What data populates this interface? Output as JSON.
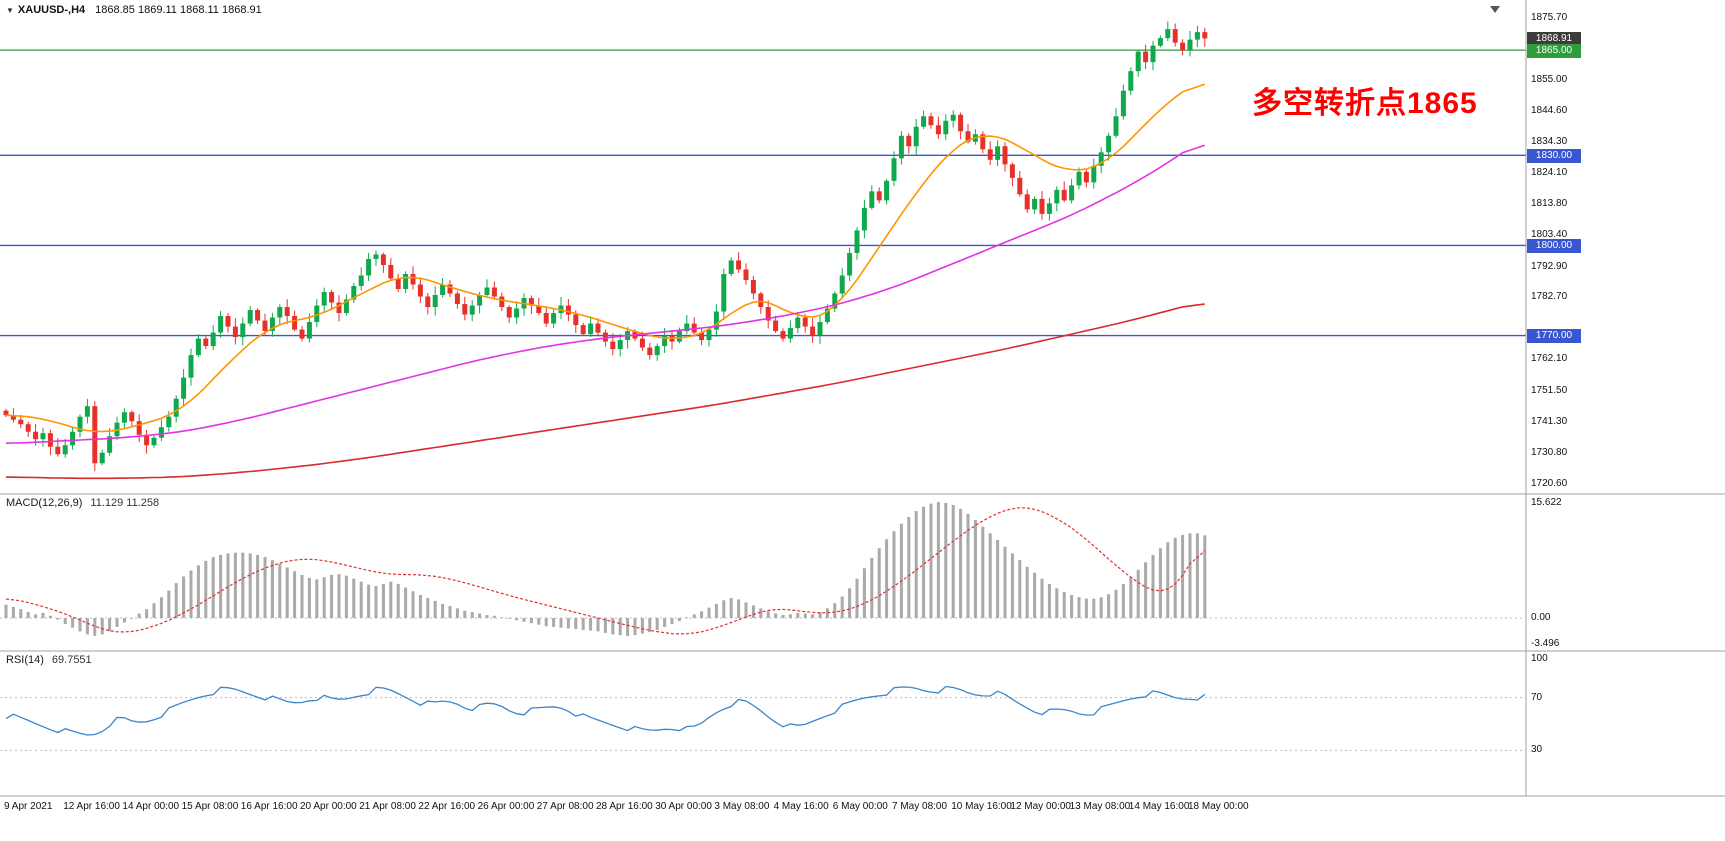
{
  "window": {
    "title_symbol": "XAUUSD-,H4",
    "title_ohlc": "1868.85 1869.11 1868.11 1868.91"
  },
  "annotation": {
    "text": "多空转折点1865",
    "color": "#ff0000"
  },
  "colors": {
    "bull": "#0fa84d",
    "bear": "#e8302a",
    "ma_fast": "#ff9500",
    "ma_mid": "#e334e3",
    "ma_slow": "#d92b2b",
    "hline_green": "#2d9e3a",
    "hline_blue": "#3a55d0",
    "macd_hist": "#a9a9a9",
    "macd_signal": "#e03131",
    "rsi_line": "#3d85c8",
    "price_badge": "#3c3c3c",
    "separator": "#a0a0a0",
    "dotted_level": "#b9b9c9"
  },
  "price_axis": {
    "ticks": [
      1875.7,
      1855.0,
      1844.6,
      1834.3,
      1824.1,
      1813.8,
      1803.4,
      1792.9,
      1782.7,
      1762.1,
      1751.5,
      1741.3,
      1730.8,
      1720.6
    ],
    "badges": [
      {
        "label": "1868.91",
        "price": 1868.91,
        "type": "last"
      },
      {
        "label": "1865.00",
        "price": 1865.0,
        "type": "green-line"
      },
      {
        "label": "1830.00",
        "price": 1830.0,
        "type": "blue-line"
      },
      {
        "label": "1800.00",
        "price": 1800.0,
        "type": "blue-line"
      },
      {
        "label": "1770.00",
        "price": 1770.0,
        "type": "blue-line"
      }
    ]
  },
  "time_axis": {
    "labels": [
      "9 Apr 2021",
      "12 Apr 16:00",
      "14 Apr 00:00",
      "15 Apr 08:00",
      "16 Apr 16:00",
      "20 Apr 00:00",
      "21 Apr 08:00",
      "22 Apr 16:00",
      "26 Apr 00:00",
      "27 Apr 08:00",
      "28 Apr 16:00",
      "30 Apr 00:00",
      "3 May 08:00",
      "4 May 16:00",
      "6 May 00:00",
      "7 May 08:00",
      "10 May 16:00",
      "12 May 00:00",
      "13 May 08:00",
      "14 May 16:00",
      "18 May 00:00"
    ]
  },
  "indicators": {
    "macd": {
      "label": "MACD(12,26,9)",
      "values": "11.129 11.258",
      "axis": [
        "15.622",
        "0.00",
        "-3.496"
      ]
    },
    "rsi": {
      "label": "RSI(14)",
      "value": "69.7551",
      "axis": [
        "100",
        "70",
        "30"
      ]
    }
  },
  "chart_data": [
    {
      "type": "candlestick",
      "title": "XAUUSD- H4",
      "ylim": [
        1720.6,
        1875.7
      ],
      "last_price": 1868.91,
      "first_open": 1745.0,
      "closes": [
        1743.5,
        1742,
        1740.5,
        1738,
        1735.5,
        1737.5,
        1733,
        1730.5,
        1733.5,
        1738,
        1743,
        1746.5,
        1727.5,
        1731,
        1736.5,
        1741,
        1744.5,
        1741.5,
        1737,
        1733.5,
        1736,
        1739.5,
        1743,
        1749,
        1756,
        1763.5,
        1769,
        1766.5,
        1771,
        1776.5,
        1773,
        1769.5,
        1774,
        1778.5,
        1775,
        1771.5,
        1776,
        1779.5,
        1776.5,
        1772,
        1769,
        1774.5,
        1780,
        1784.5,
        1781,
        1777.5,
        1782,
        1786.5,
        1790,
        1795.5,
        1797,
        1793.5,
        1789,
        1785.5,
        1790.5,
        1787,
        1783,
        1779.5,
        1783.5,
        1787,
        1784,
        1780.5,
        1777,
        1780,
        1783.5,
        1786,
        1783,
        1779.5,
        1776,
        1779,
        1782.5,
        1780,
        1777.5,
        1774,
        1777.5,
        1780,
        1777,
        1773.5,
        1770.5,
        1774,
        1771,
        1768,
        1765.5,
        1768.5,
        1771.5,
        1769,
        1766,
        1763.5,
        1766.5,
        1770,
        1768,
        1771.5,
        1774,
        1771,
        1768.5,
        1772,
        1778,
        1790.5,
        1795,
        1792,
        1788.5,
        1784,
        1779.5,
        1775,
        1771.5,
        1769,
        1772.5,
        1776,
        1773,
        1770,
        1774.5,
        1779,
        1784,
        1790,
        1797.5,
        1805,
        1812.5,
        1818,
        1815,
        1821.5,
        1829,
        1836.5,
        1833,
        1839.5,
        1843,
        1840,
        1837,
        1841.5,
        1843.5,
        1838,
        1834.5,
        1837,
        1832,
        1828.5,
        1833,
        1827,
        1822.5,
        1817,
        1812,
        1815.5,
        1810.5,
        1814,
        1818.5,
        1815,
        1820,
        1824.5,
        1821,
        1826.5,
        1831,
        1836.5,
        1843,
        1851.5,
        1858,
        1864.5,
        1861,
        1866.5,
        1869,
        1872,
        1867.5,
        1865,
        1868.5,
        1871,
        1868.91
      ],
      "hlines": [
        {
          "price": 1865.0,
          "color_key": "hline_green"
        },
        {
          "price": 1830.0,
          "color_key": "hline_blue"
        },
        {
          "price": 1800.0,
          "color_key": "hline_blue"
        },
        {
          "price": 1770.0,
          "color_key": "hline_blue"
        }
      ],
      "moving_averages": [
        {
          "name": "ma-fast",
          "color_key": "ma_fast",
          "points": [
            [
              0,
              1744
            ],
            [
              6,
              1742
            ],
            [
              12,
              1737
            ],
            [
              18,
              1740
            ],
            [
              24,
              1745
            ],
            [
              30,
              1761
            ],
            [
              36,
              1774
            ],
            [
              42,
              1776
            ],
            [
              48,
              1784
            ],
            [
              54,
              1791
            ],
            [
              60,
              1786
            ],
            [
              66,
              1782
            ],
            [
              72,
              1780
            ],
            [
              78,
              1777
            ],
            [
              84,
              1772
            ],
            [
              90,
              1768
            ],
            [
              96,
              1772
            ],
            [
              100,
              1783
            ],
            [
              104,
              1781
            ],
            [
              108,
              1774
            ],
            [
              112,
              1778
            ],
            [
              116,
              1792
            ],
            [
              120,
              1807
            ],
            [
              124,
              1821
            ],
            [
              128,
              1833
            ],
            [
              132,
              1838
            ],
            [
              136,
              1835
            ],
            [
              140,
              1828
            ],
            [
              144,
              1824
            ],
            [
              148,
              1826
            ],
            [
              152,
              1835
            ],
            [
              156,
              1846
            ],
            [
              160,
              1853
            ],
            [
              162,
              1856
            ]
          ]
        },
        {
          "name": "ma-mid",
          "color_key": "ma_mid",
          "points": [
            [
              0,
              1734
            ],
            [
              8,
              1735
            ],
            [
              16,
              1736
            ],
            [
              24,
              1738
            ],
            [
              32,
              1742
            ],
            [
              40,
              1747
            ],
            [
              48,
              1752
            ],
            [
              56,
              1757
            ],
            [
              64,
              1762
            ],
            [
              72,
              1766
            ],
            [
              80,
              1769
            ],
            [
              88,
              1771
            ],
            [
              96,
              1773
            ],
            [
              104,
              1776
            ],
            [
              112,
              1780
            ],
            [
              120,
              1786
            ],
            [
              128,
              1794
            ],
            [
              136,
              1802
            ],
            [
              144,
              1810
            ],
            [
              152,
              1820
            ],
            [
              158,
              1829
            ],
            [
              162,
              1836
            ]
          ]
        },
        {
          "name": "ma-slow",
          "color_key": "ma_slow",
          "points": [
            [
              0,
              1723
            ],
            [
              8,
              1722.5
            ],
            [
              16,
              1722.5
            ],
            [
              24,
              1723
            ],
            [
              32,
              1724.5
            ],
            [
              40,
              1726.5
            ],
            [
              48,
              1729
            ],
            [
              56,
              1732
            ],
            [
              64,
              1735
            ],
            [
              72,
              1738
            ],
            [
              80,
              1741
            ],
            [
              88,
              1744
            ],
            [
              96,
              1747
            ],
            [
              104,
              1750.5
            ],
            [
              112,
              1754
            ],
            [
              120,
              1758
            ],
            [
              128,
              1762
            ],
            [
              136,
              1766
            ],
            [
              144,
              1770.5
            ],
            [
              152,
              1775
            ],
            [
              162,
              1781.5
            ]
          ]
        }
      ]
    },
    {
      "type": "bar",
      "name": "MACD(12,26,9)",
      "ylim": [
        -3.496,
        15.622
      ],
      "current_values": [
        11.129,
        11.258
      ],
      "histogram": [
        1.8,
        1.5,
        1.2,
        0.8,
        0.5,
        0.7,
        0.3,
        -0.2,
        -0.8,
        -1.3,
        -1.8,
        -2.2,
        -2.4,
        -2.2,
        -1.8,
        -1.2,
        -0.6,
        0,
        0.6,
        1.2,
        2,
        2.8,
        3.7,
        4.7,
        5.6,
        6.4,
        7.1,
        7.7,
        8.2,
        8.5,
        8.7,
        8.8,
        8.8,
        8.7,
        8.5,
        8.2,
        7.8,
        7.3,
        6.8,
        6.3,
        5.8,
        5.4,
        5.2,
        5.5,
        5.8,
        5.9,
        5.7,
        5.3,
        4.9,
        4.5,
        4.3,
        4.6,
        4.9,
        4.6,
        4.1,
        3.6,
        3.1,
        2.7,
        2.3,
        1.9,
        1.6,
        1.3,
        1,
        0.8,
        0.6,
        0.4,
        0.3,
        0.1,
        -0.1,
        -0.3,
        -0.5,
        -0.7,
        -0.9,
        -1.1,
        -1.2,
        -1.3,
        -1.4,
        -1.5,
        -1.6,
        -1.7,
        -1.8,
        -2,
        -2.2,
        -2.3,
        -2.4,
        -2.3,
        -2.1,
        -1.9,
        -1.6,
        -1.2,
        -0.8,
        -0.4,
        0.1,
        0.5,
        0.9,
        1.4,
        1.9,
        2.4,
        2.7,
        2.5,
        2.1,
        1.7,
        1.3,
        0.9,
        0.6,
        0.4,
        0.5,
        0.7,
        0.6,
        0.5,
        0.8,
        1.3,
        2,
        2.9,
        4,
        5.3,
        6.7,
        8.1,
        9.4,
        10.6,
        11.7,
        12.7,
        13.6,
        14.4,
        15,
        15.4,
        15.6,
        15.5,
        15.2,
        14.7,
        14,
        13.2,
        12.3,
        11.4,
        10.5,
        9.6,
        8.7,
        7.8,
        6.9,
        6.1,
        5.3,
        4.6,
        4,
        3.5,
        3.1,
        2.8,
        2.6,
        2.6,
        2.8,
        3.2,
        3.8,
        4.6,
        5.5,
        6.5,
        7.5,
        8.5,
        9.4,
        10.2,
        10.8,
        11.2,
        11.4,
        11.4,
        11.13
      ],
      "signal_points": [
        [
          0,
          2.8
        ],
        [
          5,
          1.6
        ],
        [
          9,
          0.2
        ],
        [
          13,
          -1.6
        ],
        [
          16,
          -2.1
        ],
        [
          20,
          -1.2
        ],
        [
          24,
          0.6
        ],
        [
          28,
          3
        ],
        [
          32,
          5.4
        ],
        [
          36,
          7.2
        ],
        [
          40,
          8.1
        ],
        [
          44,
          7.6
        ],
        [
          48,
          6.6
        ],
        [
          52,
          5.8
        ],
        [
          56,
          5.9
        ],
        [
          60,
          5.3
        ],
        [
          64,
          4.2
        ],
        [
          68,
          3
        ],
        [
          72,
          2
        ],
        [
          76,
          1
        ],
        [
          80,
          0
        ],
        [
          84,
          -1
        ],
        [
          88,
          -1.9
        ],
        [
          92,
          -2.3
        ],
        [
          96,
          -1.4
        ],
        [
          100,
          0.2
        ],
        [
          104,
          1.4
        ],
        [
          108,
          0.8
        ],
        [
          112,
          0.6
        ],
        [
          116,
          1.8
        ],
        [
          120,
          4.2
        ],
        [
          124,
          7.2
        ],
        [
          128,
          10.4
        ],
        [
          132,
          13.2
        ],
        [
          135,
          14.6
        ],
        [
          137,
          15.1
        ],
        [
          139,
          14.8
        ],
        [
          142,
          13.5
        ],
        [
          145,
          11.5
        ],
        [
          148,
          8.8
        ],
        [
          151,
          6.2
        ],
        [
          154,
          4
        ],
        [
          156,
          3.1
        ],
        [
          158,
          4
        ],
        [
          160,
          6.8
        ],
        [
          162,
          11.3
        ]
      ]
    },
    {
      "type": "line",
      "name": "RSI(14)",
      "ylim": [
        0,
        100
      ],
      "levels": [
        70,
        30
      ],
      "current_value": 69.7551,
      "points": [
        [
          0,
          57
        ],
        [
          3,
          52
        ],
        [
          6,
          47
        ],
        [
          9,
          43
        ],
        [
          12,
          41
        ],
        [
          15,
          55
        ],
        [
          18,
          50
        ],
        [
          21,
          57
        ],
        [
          24,
          66
        ],
        [
          27,
          73
        ],
        [
          30,
          77
        ],
        [
          33,
          73
        ],
        [
          36,
          69
        ],
        [
          39,
          65
        ],
        [
          42,
          71
        ],
        [
          45,
          67
        ],
        [
          48,
          73
        ],
        [
          51,
          77
        ],
        [
          54,
          71
        ],
        [
          57,
          64
        ],
        [
          60,
          68
        ],
        [
          63,
          61
        ],
        [
          66,
          66
        ],
        [
          69,
          58
        ],
        [
          72,
          61
        ],
        [
          75,
          64
        ],
        [
          78,
          55
        ],
        [
          81,
          51
        ],
        [
          84,
          47
        ],
        [
          87,
          44
        ],
        [
          90,
          48
        ],
        [
          93,
          45
        ],
        [
          96,
          60
        ],
        [
          99,
          68
        ],
        [
          101,
          64
        ],
        [
          104,
          52
        ],
        [
          107,
          46
        ],
        [
          110,
          55
        ],
        [
          113,
          63
        ],
        [
          116,
          70
        ],
        [
          119,
          74
        ],
        [
          122,
          78
        ],
        [
          125,
          75
        ],
        [
          128,
          77
        ],
        [
          131,
          72
        ],
        [
          134,
          74
        ],
        [
          137,
          65
        ],
        [
          140,
          58
        ],
        [
          143,
          61
        ],
        [
          146,
          57
        ],
        [
          149,
          63
        ],
        [
          152,
          70
        ],
        [
          155,
          74
        ],
        [
          157,
          71
        ],
        [
          159,
          69
        ],
        [
          161,
          71
        ],
        [
          162,
          69.76
        ]
      ]
    }
  ]
}
